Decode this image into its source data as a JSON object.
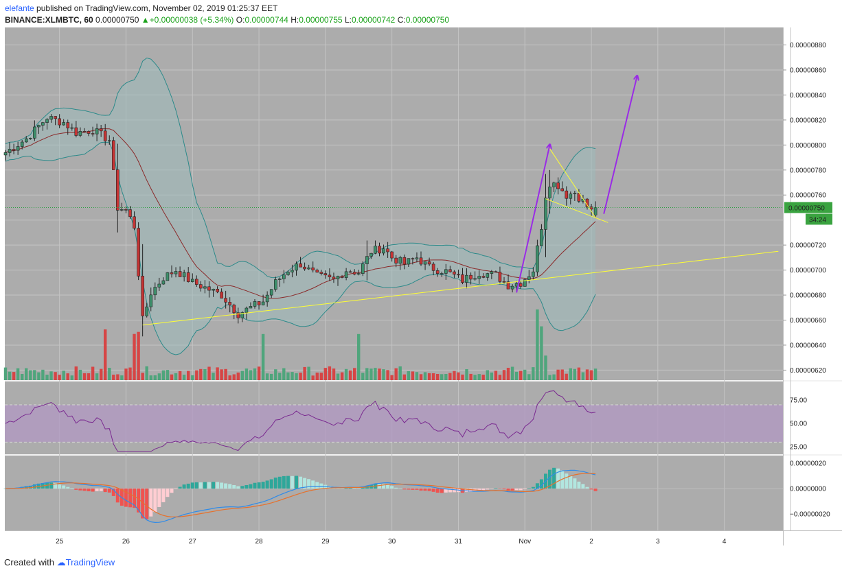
{
  "header": {
    "user": "elefante",
    "published": "published on TradingView.com, November 02, 2019 01:25:37 EET",
    "symbol": "BINANCE:XLMBTC, 60",
    "last": "0.00000750",
    "change": "+0.00000038 (+5.34%)",
    "o_label": "O:",
    "o_value": "0.00000744",
    "h_label": "H:",
    "h_value": "0.00000755",
    "l_label": "L:",
    "l_value": "0.00000742",
    "c_label": "C:",
    "c_value": "0.00000750"
  },
  "footer": {
    "created": "Created with",
    "brand": "TradingView"
  },
  "colors": {
    "pane_bg": "#acacac",
    "up": "#3d8f6b",
    "down": "#c73535",
    "bands": "#2c8a8a",
    "band_fill": "#9fbcbb",
    "basis": "#8b2a2a",
    "trend": "#ffff33",
    "arrow": "#9a2be6",
    "rsi": "#7a2a90",
    "rsi_band": "#b29ac2",
    "macd": "#2f8be8",
    "signal": "#e6712c",
    "price_tag": "#3aa340"
  },
  "chart_data": [
    {
      "type": "candlestick",
      "title": "BINANCE:XLMBTC, 60",
      "x_ticks": [
        "25",
        "26",
        "27",
        "28",
        "29",
        "30",
        "31",
        "Nov",
        "2",
        "3",
        "4"
      ],
      "y_ticks": [
        "0.00000620",
        "0.00000640",
        "0.00000660",
        "0.00000680",
        "0.00000700",
        "0.00000720",
        "0.00000740",
        "0.00000760",
        "0.00000780",
        "0.00000800",
        "0.00000820",
        "0.00000840",
        "0.00000860",
        "0.00000880"
      ],
      "ylim": [
        6.12e-06,
        8.94e-06
      ],
      "current_price_label": "0.00000750",
      "countdown_label": "34:24",
      "anchors": [
        {
          "t": 0,
          "p": 7.94
        },
        {
          "t": 5,
          "p": 8.05
        },
        {
          "t": 10,
          "p": 8.22
        },
        {
          "t": 14,
          "p": 8.18
        },
        {
          "t": 17,
          "p": 8.1
        },
        {
          "t": 21,
          "p": 8.12
        },
        {
          "t": 25,
          "p": 8.04
        },
        {
          "t": 27,
          "p": 7.5
        },
        {
          "t": 29,
          "p": 7.48
        },
        {
          "t": 31,
          "p": 7.35
        },
        {
          "t": 33,
          "p": 6.6
        },
        {
          "t": 35,
          "p": 6.82
        },
        {
          "t": 38,
          "p": 6.94
        },
        {
          "t": 41,
          "p": 7.0
        },
        {
          "t": 45,
          "p": 6.9
        },
        {
          "t": 48,
          "p": 6.86
        },
        {
          "t": 52,
          "p": 6.8
        },
        {
          "t": 56,
          "p": 6.65
        },
        {
          "t": 59,
          "p": 6.7
        },
        {
          "t": 62,
          "p": 6.75
        },
        {
          "t": 65,
          "p": 6.9
        },
        {
          "t": 68,
          "p": 7.0
        },
        {
          "t": 71,
          "p": 7.05
        },
        {
          "t": 75,
          "p": 6.95
        },
        {
          "t": 79,
          "p": 6.92
        },
        {
          "t": 82,
          "p": 7.0
        },
        {
          "t": 85,
          "p": 6.98
        },
        {
          "t": 88,
          "p": 7.15
        },
        {
          "t": 91,
          "p": 7.18
        },
        {
          "t": 93,
          "p": 7.1
        },
        {
          "t": 96,
          "p": 7.05
        },
        {
          "t": 99,
          "p": 7.1
        },
        {
          "t": 102,
          "p": 7.02
        },
        {
          "t": 106,
          "p": 6.99
        },
        {
          "t": 110,
          "p": 6.92
        },
        {
          "t": 114,
          "p": 6.98
        },
        {
          "t": 118,
          "p": 6.96
        },
        {
          "t": 121,
          "p": 6.88
        },
        {
          "t": 124,
          "p": 6.9
        },
        {
          "t": 127,
          "p": 7.0
        },
        {
          "t": 129,
          "p": 7.35
        },
        {
          "t": 130,
          "p": 7.6
        },
        {
          "t": 131,
          "p": 7.7
        },
        {
          "t": 133,
          "p": 7.68
        },
        {
          "t": 135,
          "p": 7.6
        },
        {
          "t": 137,
          "p": 7.62
        },
        {
          "t": 139,
          "p": 7.55
        },
        {
          "t": 141,
          "p": 7.47
        },
        {
          "t": 142,
          "p": 7.5
        }
      ],
      "series": [
        {
          "name": "Price",
          "kind": "candles"
        },
        {
          "name": "Bollinger Bands",
          "kind": "bands",
          "length": 20,
          "mult": 2
        },
        {
          "name": "Volume",
          "kind": "histogram"
        }
      ],
      "annotations": [
        {
          "kind": "trendline",
          "color": "#ffff33",
          "from": {
            "t": 33,
            "p": 6.56
          },
          "to": {
            "t": 186,
            "p": 7.15
          }
        },
        {
          "kind": "trendline",
          "color": "#ffff33",
          "from": {
            "t": 131,
            "p": 7.97
          },
          "to": {
            "t": 142,
            "p": 7.42
          }
        },
        {
          "kind": "trendline",
          "color": "#ffff33",
          "from": {
            "t": 130,
            "p": 7.57
          },
          "to": {
            "t": 145,
            "p": 7.38
          }
        },
        {
          "kind": "arrow",
          "color": "#9a2be6",
          "from": {
            "t": 123,
            "p": 6.82
          },
          "to": {
            "t": 131,
            "p": 8.0
          }
        },
        {
          "kind": "arrow",
          "color": "#9a2be6",
          "from": {
            "t": 144,
            "p": 7.45
          },
          "to": {
            "t": 152,
            "p": 8.55
          }
        }
      ]
    },
    {
      "type": "line",
      "title": "RSI",
      "y_ticks": [
        "75.00",
        "50.00",
        "25.00"
      ],
      "ylim": [
        17,
        95
      ],
      "band": [
        30,
        70
      ],
      "series": [
        {
          "name": "RSI",
          "kind": "rsi",
          "length": 14
        }
      ]
    },
    {
      "type": "line",
      "title": "MACD",
      "y_ticks": [
        "0.00000020",
        "0.00000000",
        "−0.00000020"
      ],
      "ylim": [
        -3.3e-07,
        2.6e-07
      ],
      "series": [
        {
          "name": "MACD",
          "kind": "macd"
        },
        {
          "name": "Signal",
          "kind": "signal"
        },
        {
          "name": "Histogram",
          "kind": "histogram"
        }
      ]
    }
  ]
}
